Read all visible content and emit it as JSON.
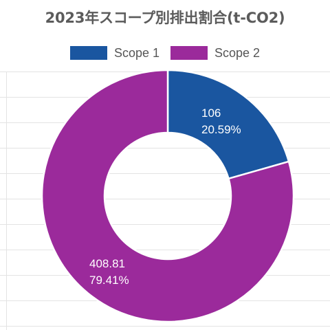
{
  "chart_data": {
    "type": "pie",
    "variant": "doughnut",
    "title": "2023年スコープ別排出割合(t-CO2)",
    "legend_position": "top",
    "grid": true,
    "categories": [
      "Scope 1",
      "Scope 2"
    ],
    "values": [
      106,
      408.81
    ],
    "percent_labels": [
      "20.59%",
      "79.41%"
    ],
    "value_labels": [
      "106",
      "408.81"
    ],
    "colors": [
      "#1a56a0",
      "#9b2a9b"
    ]
  }
}
